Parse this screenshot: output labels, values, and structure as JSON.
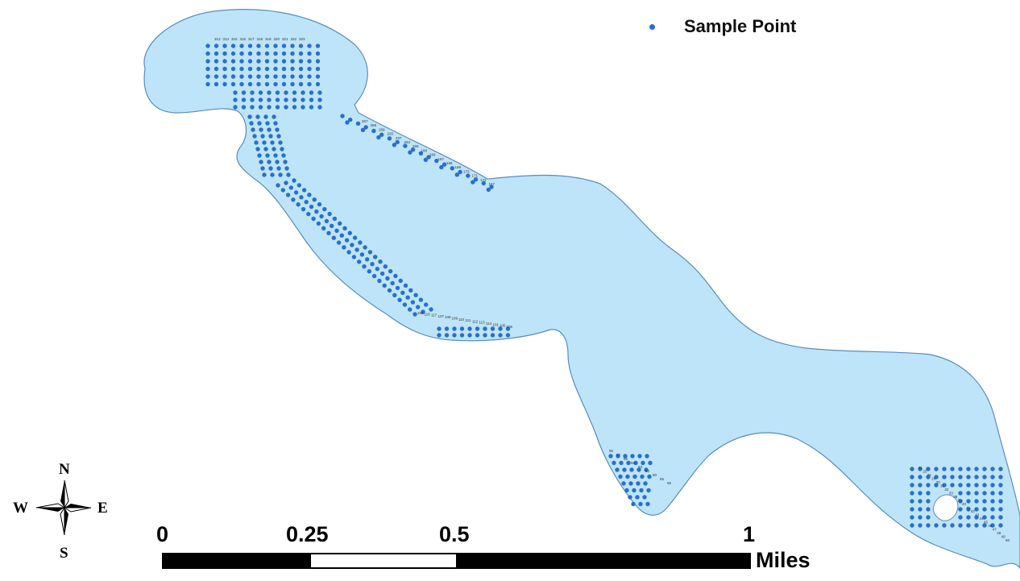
{
  "legend": {
    "label": "Sample Point",
    "icon": "sample-point-dot",
    "color": "#2a6fc9"
  },
  "colors": {
    "water": "#bde4f8",
    "shoreline": "#5a8cc0",
    "point": "#2a6fc9",
    "scale_bar": "#000000"
  },
  "scale_bar": {
    "ticks": [
      "0",
      "0.25",
      "0.5",
      "1"
    ],
    "unit": "Miles"
  },
  "north_arrow": {
    "icon": "compass-rose-icon",
    "n": "N",
    "s": "S",
    "e": "E",
    "w": "W"
  },
  "point_labels": {
    "top_row": [
      "313",
      "314",
      "315",
      "316",
      "317",
      "318",
      "319",
      "320",
      "321",
      "322",
      "323"
    ],
    "east_shore": [
      "267",
      "268",
      "269",
      "226",
      "237",
      "263",
      "265",
      "188",
      "169",
      "167",
      "168",
      "169",
      "173",
      "171",
      "172",
      "157"
    ],
    "south_shore": [
      "155",
      "116",
      "117",
      "107",
      "108",
      "109",
      "110",
      "111",
      "112",
      "113",
      "114",
      "101",
      "105",
      "106"
    ],
    "southeast_cove": [
      "96",
      "97",
      "98",
      "94",
      "93",
      "84",
      "80",
      "65",
      "55"
    ],
    "far_east": [
      "21",
      "25",
      "26",
      "29",
      "30",
      "31",
      "32",
      "33",
      "38",
      "39",
      "40",
      "41",
      "42",
      "43",
      "44",
      "45",
      "46",
      "47",
      "48",
      "49",
      "50"
    ]
  }
}
